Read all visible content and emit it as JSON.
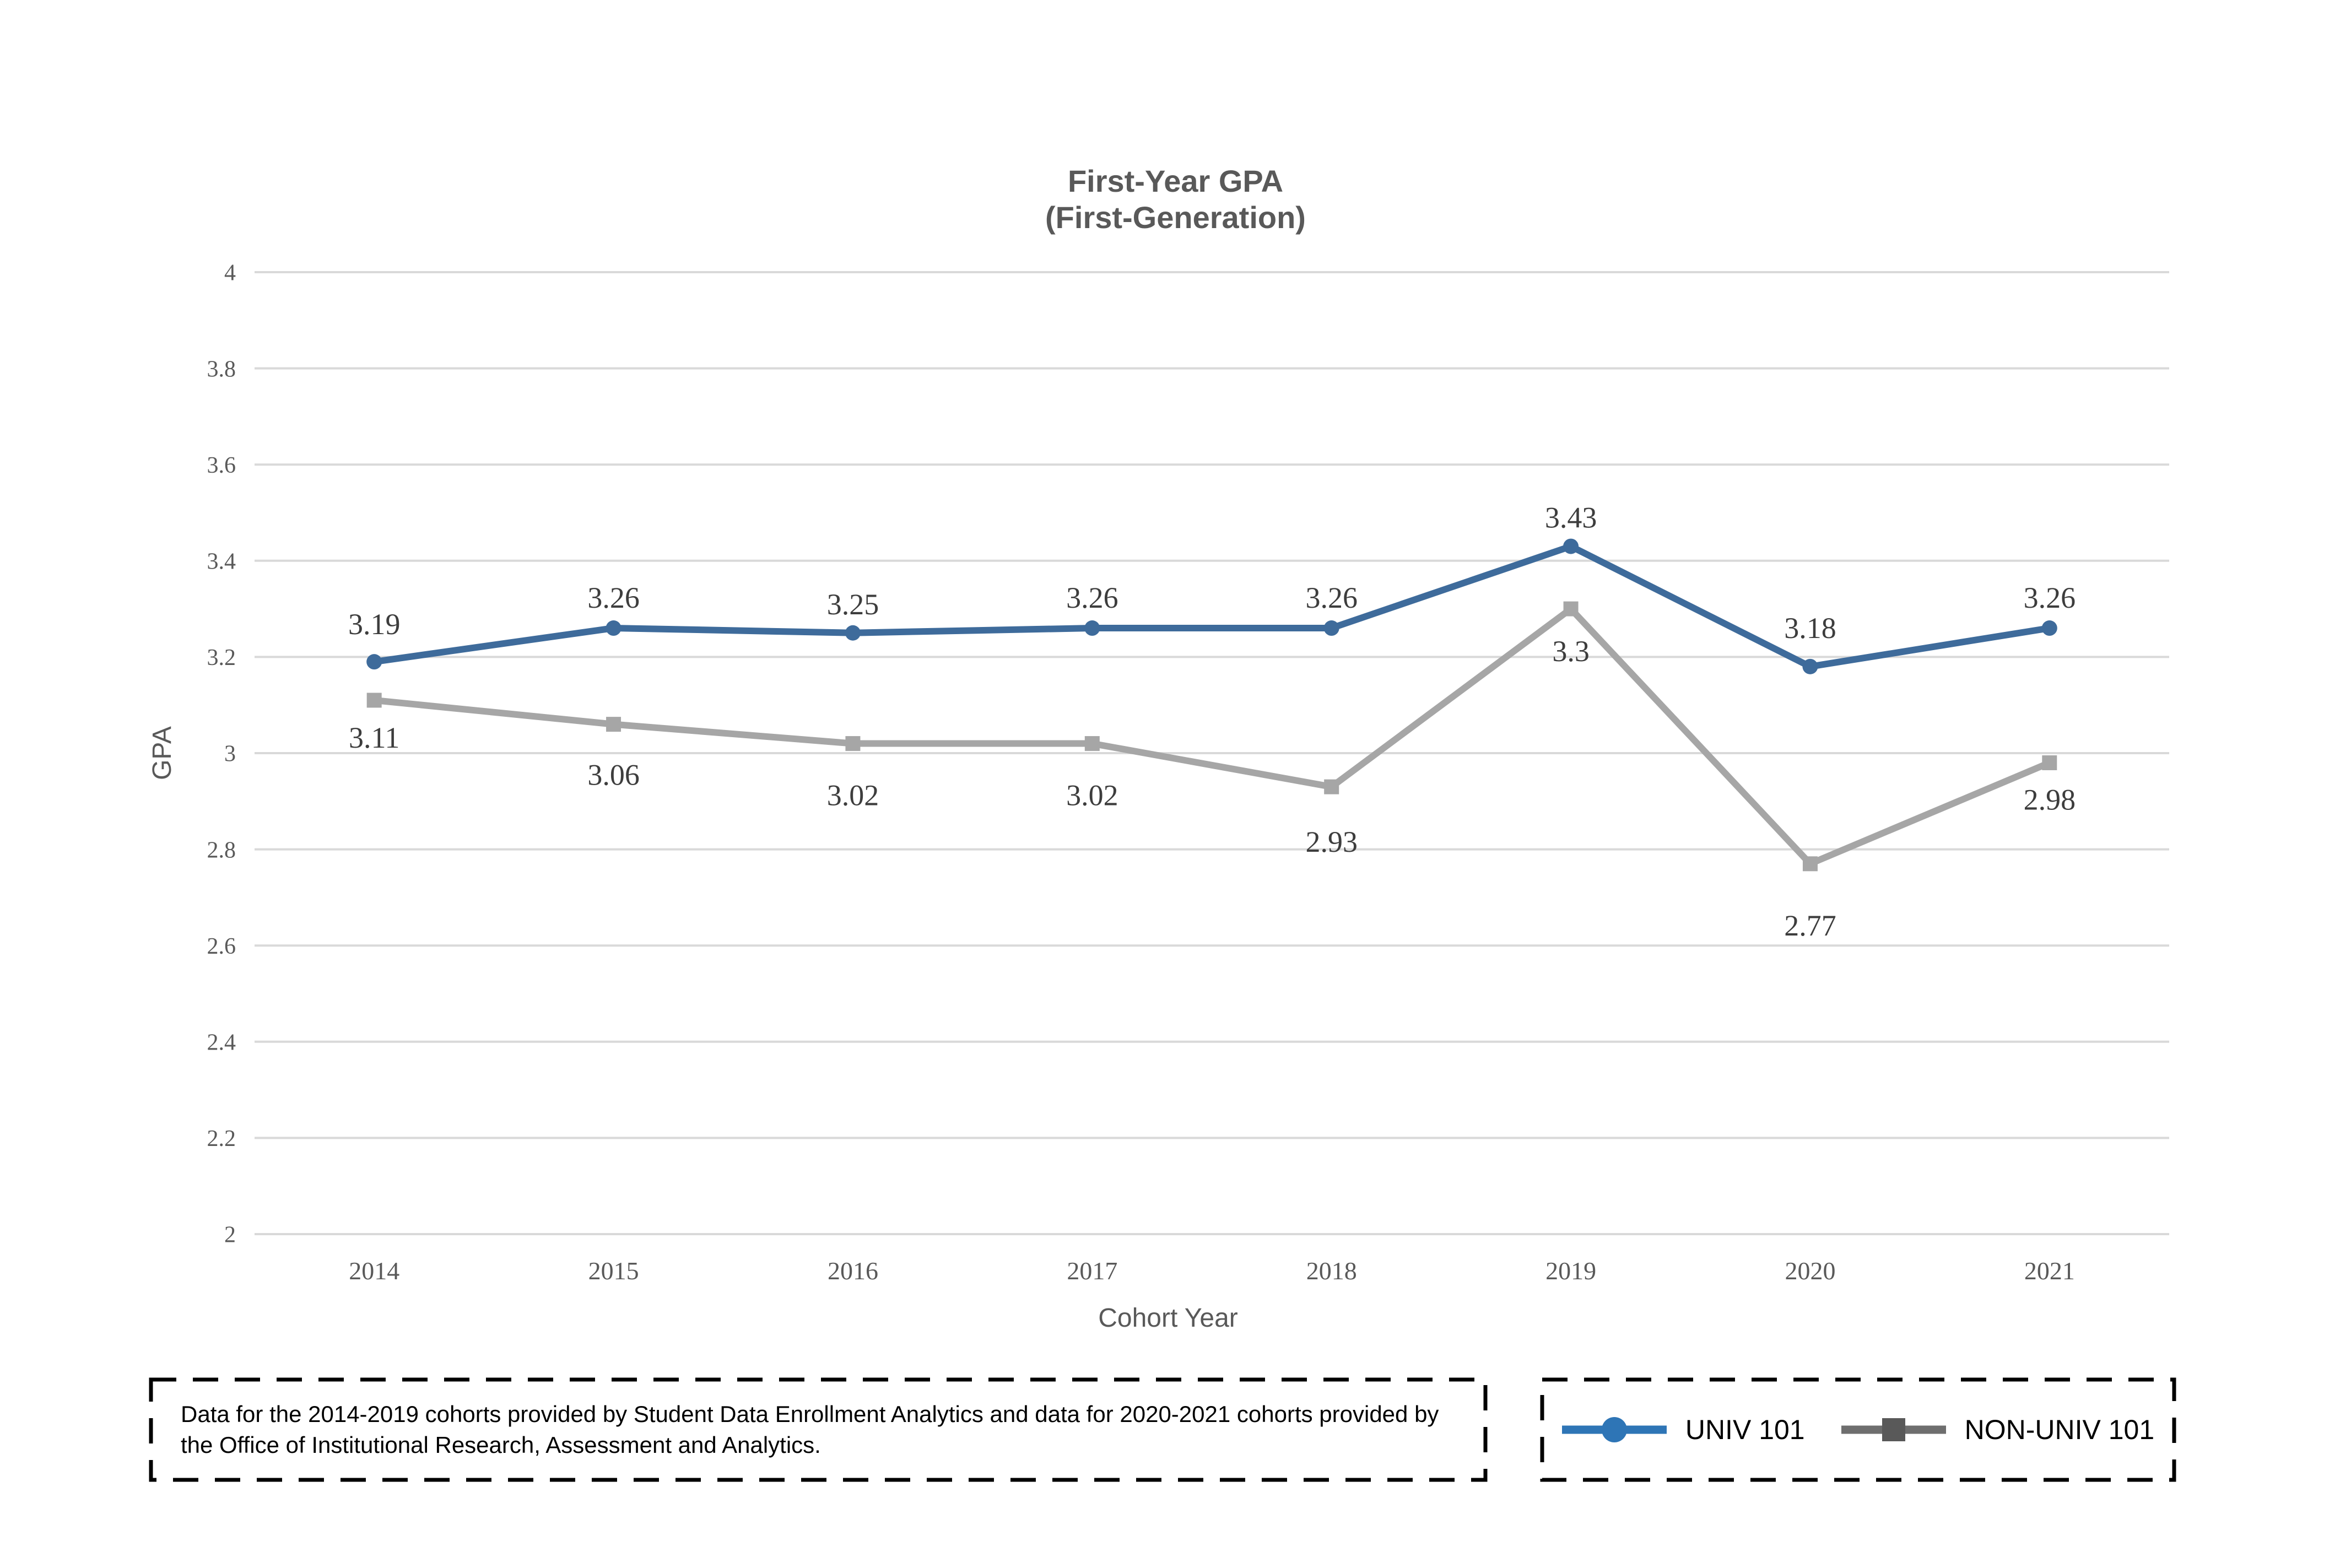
{
  "title": {
    "line1": "First-Year GPA",
    "line2": "(First-Generation)"
  },
  "chart_data": {
    "type": "line",
    "categories": [
      "2014",
      "2015",
      "2016",
      "2017",
      "2018",
      "2019",
      "2020",
      "2021"
    ],
    "series": [
      {
        "name": "UNIV 101",
        "color": "#3E6B9B",
        "marker": "circle",
        "values": [
          3.19,
          3.26,
          3.25,
          3.26,
          3.26,
          3.43,
          3.18,
          3.26
        ],
        "labels": [
          "3.19",
          "3.26",
          "3.25",
          "3.26",
          "3.26",
          "3.43",
          "3.18",
          "3.26"
        ],
        "label_position": "above"
      },
      {
        "name": "NON-UNIV 101",
        "color": "#A6A6A6",
        "marker": "square",
        "values": [
          3.11,
          3.06,
          3.02,
          3.02,
          2.93,
          3.3,
          2.77,
          2.98
        ],
        "labels": [
          "3.11",
          "3.06",
          "3.02",
          "3.02",
          "2.93",
          "3.3",
          "2.77",
          "2.98"
        ],
        "label_position": "below"
      }
    ],
    "title": "First-Year GPA (First-Generation)",
    "xlabel": "Cohort Year",
    "ylabel": "GPA",
    "ylim": [
      2,
      4
    ],
    "ytick_step": 0.2,
    "ytick_labels": [
      "4",
      "3.8",
      "3.6",
      "3.4",
      "3.2",
      "3",
      "2.8",
      "2.6",
      "2.4",
      "2.2",
      "2"
    ],
    "grid": true,
    "legend_position": "bottom-right"
  },
  "footnote": {
    "text": "Data for the 2014-2019 cohorts provided by Student Data Enrollment Analytics and data for 2020-2021 cohorts provided by the Office of Institutional Research, Assessment and Analytics."
  },
  "legend": {
    "items": [
      {
        "label": "UNIV 101",
        "marker": "circle",
        "line_color": "#2E75B6",
        "marker_color": "#2E75B6"
      },
      {
        "label": "NON-UNIV 101",
        "marker": "square",
        "line_color": "#6E6E6E",
        "marker_color": "#595959"
      }
    ]
  },
  "colors": {
    "series_blue": "#3E6B9B",
    "series_gray": "#A6A6A6",
    "legend_blue": "#2E75B6",
    "legend_gray": "#595959",
    "gridline": "#D9D9D9",
    "axis_text": "#595959",
    "data_label": "#3D3D3D",
    "footnote_text": "#000000"
  }
}
